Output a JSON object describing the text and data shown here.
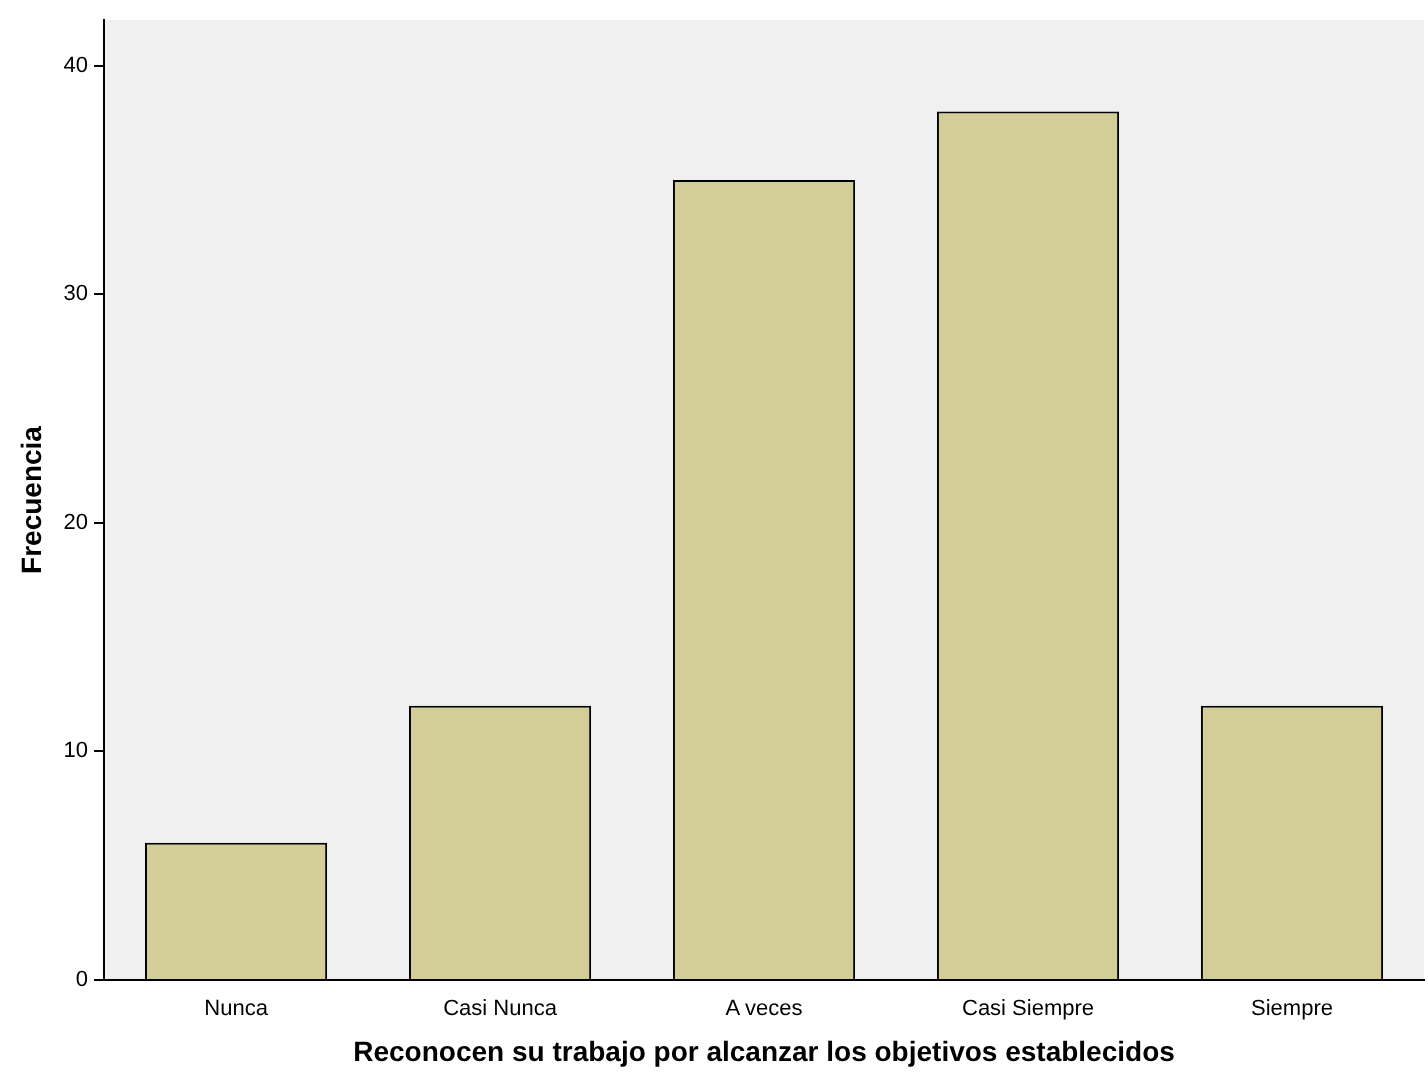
{
  "chart_data": {
    "type": "bar",
    "xlabel": "Reconocen su trabajo por alcanzar los objetivos establecidos",
    "ylabel": "Frecuencia",
    "categories": [
      "Nunca",
      "Casi Nunca",
      "A veces",
      "Casi Siempre",
      "Siempre"
    ],
    "values": [
      6,
      12,
      35,
      38,
      12
    ],
    "color": "#d3ce97",
    "ylim": [
      0,
      42
    ],
    "yticks": [
      0,
      10,
      20,
      30,
      40
    ],
    "grid": false,
    "legend": false
  }
}
